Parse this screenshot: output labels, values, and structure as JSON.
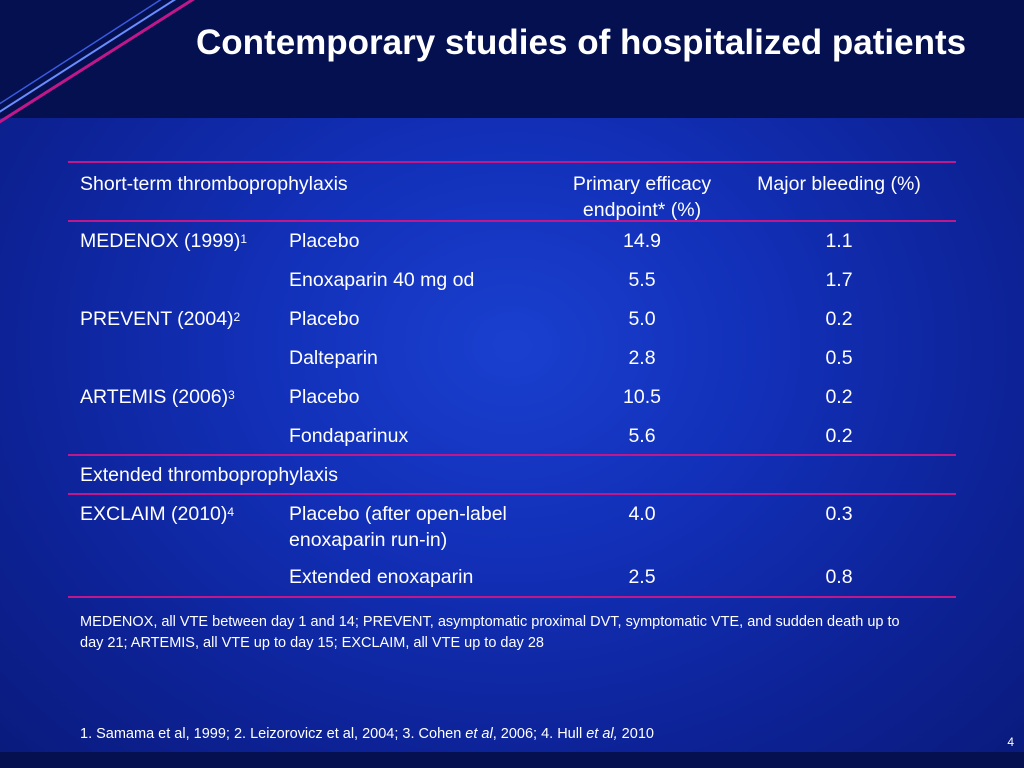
{
  "title": "Contemporary studies of hospitalized patients",
  "table": {
    "header": {
      "col1": "Short-term thromboprophylaxis",
      "col3": "Primary efficacy endpoint* (%)",
      "col4": "Major bleeding (%)"
    },
    "rows": [
      {
        "study": "MEDENOX (1999)",
        "ref": "1",
        "treatment": "Placebo",
        "efficacy": "14.9",
        "bleeding": "1.1"
      },
      {
        "study": "",
        "ref": "",
        "treatment": "Enoxaparin 40 mg od",
        "efficacy": "5.5",
        "bleeding": "1.7"
      },
      {
        "study": "PREVENT (2004)",
        "ref": "2",
        "treatment": "Placebo",
        "efficacy": "5.0",
        "bleeding": "0.2"
      },
      {
        "study": "",
        "ref": "",
        "treatment": "Dalteparin",
        "efficacy": "2.8",
        "bleeding": "0.5"
      },
      {
        "study": "ARTEMIS (2006)",
        "ref": "3",
        "treatment": "Placebo",
        "efficacy": "10.5",
        "bleeding": "0.2"
      },
      {
        "study": "",
        "ref": "",
        "treatment": "Fondaparinux",
        "efficacy": "5.6",
        "bleeding": "0.2"
      }
    ],
    "section2": "Extended thromboprophylaxis",
    "rows2": [
      {
        "study": "EXCLAIM (2010)",
        "ref": "4",
        "treatment": "Placebo (after open-label enoxaparin run-in)",
        "efficacy": "4.0",
        "bleeding": "0.3"
      },
      {
        "study": "",
        "ref": "",
        "treatment": "Extended enoxaparin",
        "efficacy": "2.5",
        "bleeding": "0.8"
      }
    ]
  },
  "footnote": "MEDENOX, all VTE between day 1 and 14; PREVENT, asymptomatic proximal DVT, symptomatic VTE, and sudden death up to day 21; ARTEMIS, all VTE up to day 15; EXCLAIM, all VTE up to day 28",
  "references": {
    "part1": "1. Samama et al, 1999; 2. Leizorovicz et al, 2004; 3. Cohen ",
    "etal1": "et al",
    "part2": ", 2006; 4. Hull ",
    "etal2": "et al,",
    "part3": " 2010"
  },
  "page_number": "4",
  "colors": {
    "rule": "#c0188a",
    "header_band": "#04104f",
    "background": "#1230b8"
  }
}
